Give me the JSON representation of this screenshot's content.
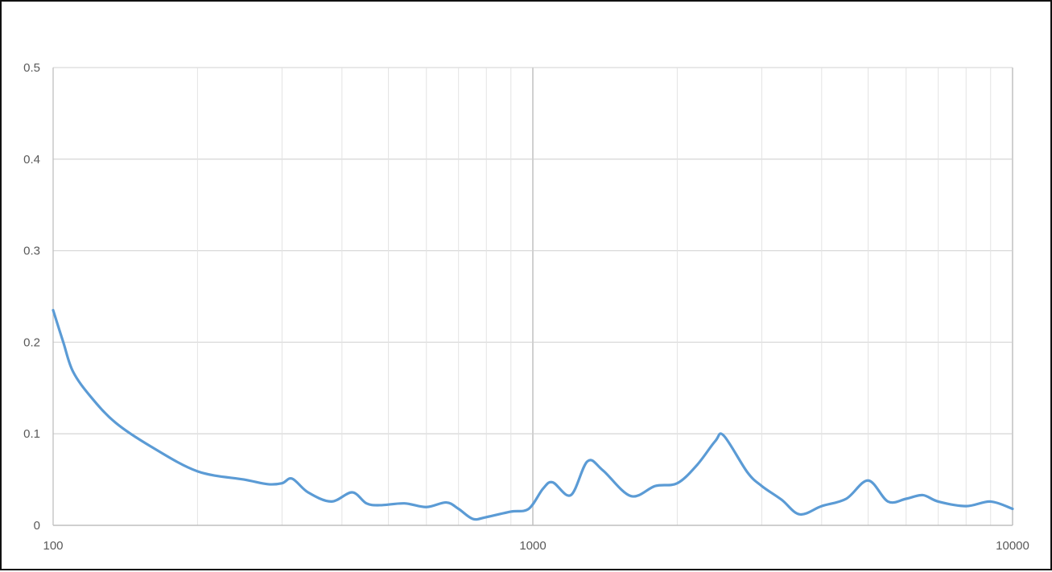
{
  "chart_data": {
    "type": "line",
    "title": "",
    "xlabel": "",
    "ylabel": "",
    "x_scale": "log",
    "xlim": [
      100,
      10000
    ],
    "ylim": [
      0,
      0.5
    ],
    "grid": true,
    "x_ticks": [
      100,
      1000,
      10000
    ],
    "x_tick_labels": [
      "100",
      "1000",
      "10000"
    ],
    "y_ticks": [
      0,
      0.1,
      0.2,
      0.3,
      0.4,
      0.5
    ],
    "y_tick_labels": [
      "0",
      "0.1",
      "0.2",
      "0.3",
      "0.4",
      "0.5"
    ],
    "series": [
      {
        "color": "#5b9bd5",
        "x": [
          100,
          105,
          110,
          120,
          135,
          160,
          200,
          250,
          280,
          300,
          315,
          340,
          380,
          420,
          450,
          480,
          540,
          600,
          660,
          700,
          750,
          800,
          900,
          980,
          1050,
          1100,
          1200,
          1300,
          1400,
          1600,
          1800,
          2000,
          2200,
          2400,
          2500,
          2800,
          3000,
          3300,
          3600,
          4000,
          4500,
          5000,
          5500,
          6000,
          6500,
          7000,
          8000,
          9000,
          10000
        ],
        "y": [
          0.235,
          0.2,
          0.168,
          0.14,
          0.112,
          0.086,
          0.059,
          0.05,
          0.045,
          0.046,
          0.051,
          0.036,
          0.026,
          0.036,
          0.024,
          0.022,
          0.024,
          0.02,
          0.025,
          0.018,
          0.007,
          0.009,
          0.015,
          0.018,
          0.04,
          0.047,
          0.033,
          0.07,
          0.06,
          0.032,
          0.043,
          0.046,
          0.066,
          0.092,
          0.098,
          0.058,
          0.043,
          0.028,
          0.012,
          0.021,
          0.029,
          0.049,
          0.026,
          0.029,
          0.033,
          0.026,
          0.021,
          0.026,
          0.018
        ]
      }
    ]
  }
}
